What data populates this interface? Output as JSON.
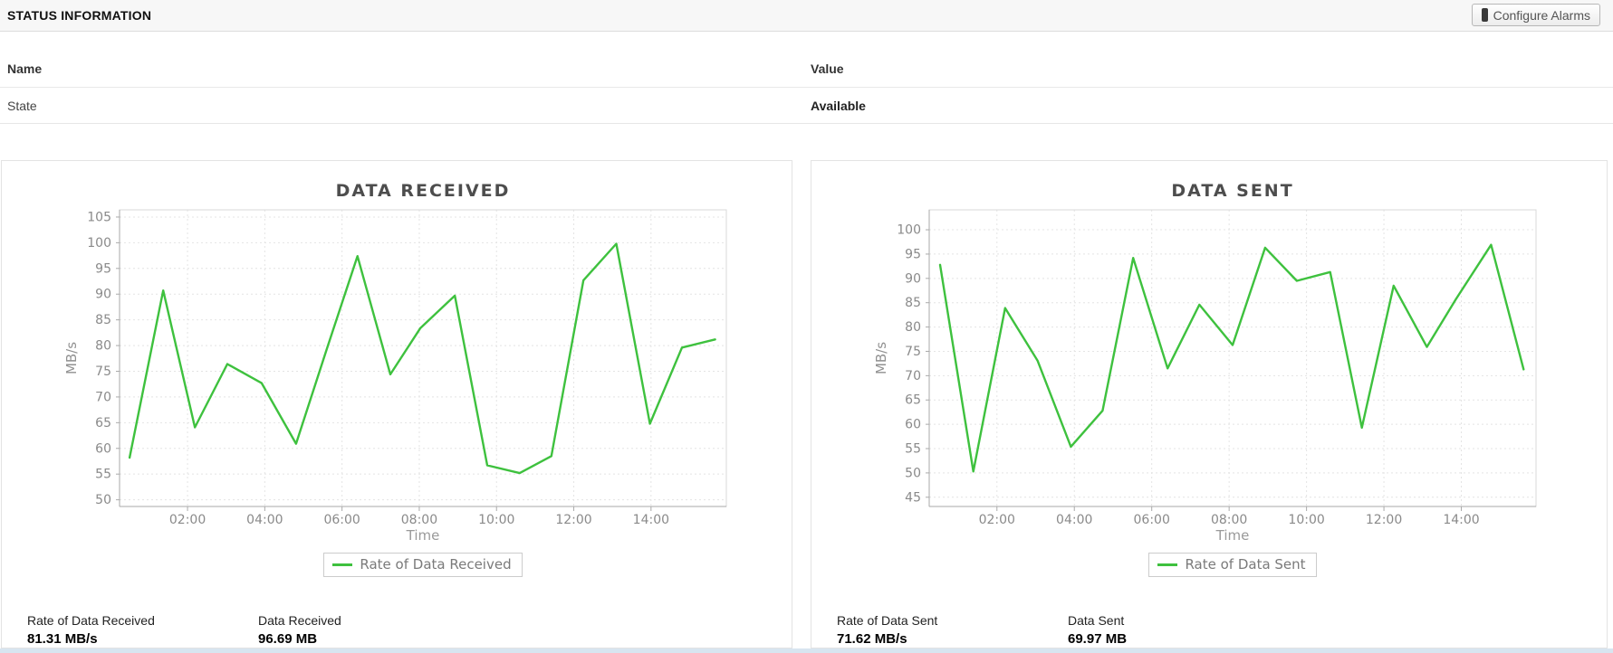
{
  "header": {
    "title": "STATUS INFORMATION",
    "configure_alarms_label": "Configure Alarms",
    "traffic_light_icon_colors": {
      "red": "#d43c3c",
      "middle": "#6b6b2a",
      "green": "#3fae3f"
    }
  },
  "status_table": {
    "columns": {
      "name": "Name",
      "value": "Value"
    },
    "rows": [
      {
        "name": "State",
        "value": "Available"
      }
    ]
  },
  "chart_data": [
    {
      "type": "line",
      "title": "DATA RECEIVED",
      "ylabel": "MB/s",
      "xlabel": "Time",
      "legend": "Rate of Data Received",
      "line_color": "#3ec13e",
      "grid": "dotted",
      "legend_position": "bottom",
      "x_hours": [
        0.5,
        1.37,
        2.19,
        3.03,
        3.92,
        4.81,
        5.6,
        6.4,
        7.25,
        8.03,
        8.92,
        9.76,
        10.6,
        11.42,
        12.25,
        13.1,
        13.97,
        14.8,
        15.66
      ],
      "values_mbps": [
        58.2,
        90.7,
        64.1,
        76.4,
        72.7,
        60.9,
        79.2,
        97.4,
        74.4,
        83.4,
        89.7,
        56.7,
        55.2,
        58.5,
        92.7,
        99.8,
        64.8,
        79.6,
        81.2
      ],
      "ylim": [
        48.7,
        106.4
      ],
      "xlim": [
        0.24,
        15.95
      ],
      "y_ticks": [
        50,
        55,
        60,
        65,
        70,
        75,
        80,
        85,
        90,
        95,
        100,
        105
      ],
      "x_ticks": [
        {
          "hour": 2,
          "label": "02:00"
        },
        {
          "hour": 4,
          "label": "04:00"
        },
        {
          "hour": 6,
          "label": "06:00"
        },
        {
          "hour": 8,
          "label": "08:00"
        },
        {
          "hour": 10,
          "label": "10:00"
        },
        {
          "hour": 12,
          "label": "12:00"
        },
        {
          "hour": 14,
          "label": "14:00"
        }
      ],
      "stats": [
        {
          "label": "Rate of Data Received",
          "value": "81.31 MB/s"
        },
        {
          "label": "Data Received",
          "value": "96.69 MB"
        }
      ]
    },
    {
      "type": "line",
      "title": "DATA SENT",
      "ylabel": "MB/s",
      "xlabel": "Time",
      "legend": "Rate of Data Sent",
      "line_color": "#3ec13e",
      "grid": "dotted",
      "legend_position": "bottom",
      "x_hours": [
        0.53,
        1.39,
        2.21,
        3.05,
        3.91,
        4.73,
        5.52,
        6.41,
        7.23,
        8.09,
        8.93,
        9.75,
        10.61,
        11.43,
        12.25,
        13.11,
        13.86,
        14.77,
        15.61
      ],
      "values_mbps": [
        92.8,
        50.3,
        83.9,
        73.1,
        55.4,
        62.8,
        94.2,
        71.5,
        84.6,
        76.3,
        96.3,
        89.5,
        91.3,
        59.3,
        88.5,
        75.9,
        85.7,
        96.9,
        71.3
      ],
      "ylim": [
        43.1,
        104.1
      ],
      "xlim": [
        0.25,
        15.93
      ],
      "y_ticks": [
        45,
        50,
        55,
        60,
        65,
        70,
        75,
        80,
        85,
        90,
        95,
        100
      ],
      "x_ticks": [
        {
          "hour": 2,
          "label": "02:00"
        },
        {
          "hour": 4,
          "label": "04:00"
        },
        {
          "hour": 6,
          "label": "06:00"
        },
        {
          "hour": 8,
          "label": "08:00"
        },
        {
          "hour": 10,
          "label": "10:00"
        },
        {
          "hour": 12,
          "label": "12:00"
        },
        {
          "hour": 14,
          "label": "14:00"
        }
      ],
      "stats": [
        {
          "label": "Rate of Data Sent",
          "value": "71.62 MB/s"
        },
        {
          "label": "Data Sent",
          "value": "69.97 MB"
        }
      ]
    }
  ]
}
